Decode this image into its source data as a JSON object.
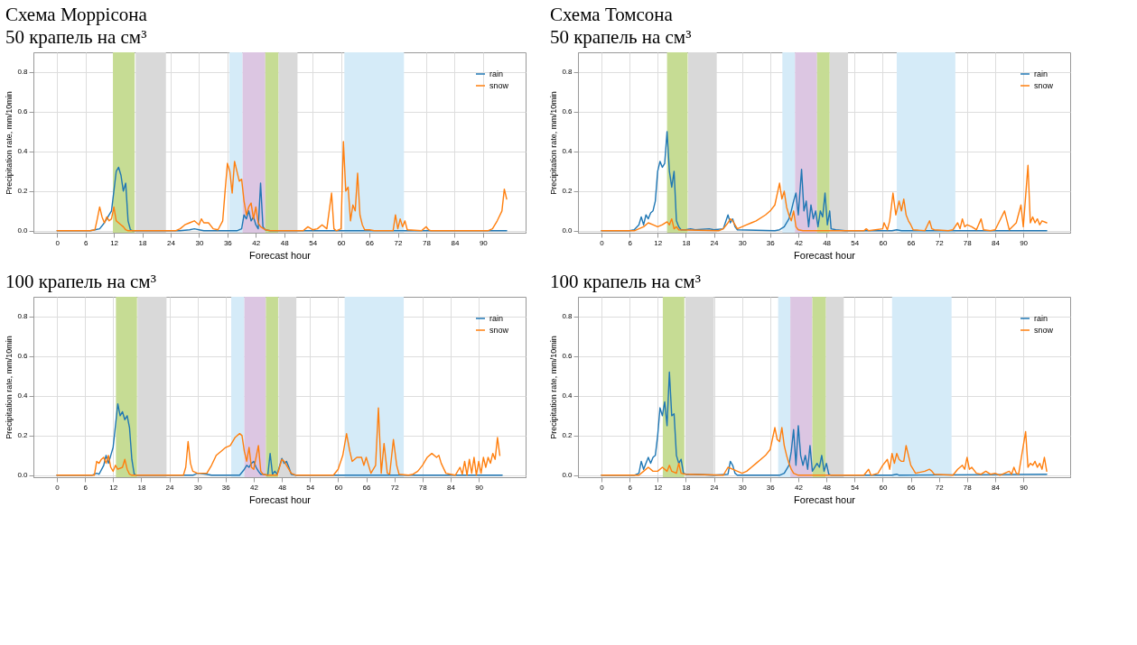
{
  "chart_data": [
    {
      "type": "line",
      "title": "Схема Моррісона",
      "subtitle": "50 крапель на см³",
      "xlabel": "Forecast hour",
      "ylabel": "Precipitation rate, mm/10min",
      "xlim": [
        -5,
        99
      ],
      "ylim": [
        -0.01,
        0.9
      ],
      "xticks": [
        0,
        6,
        12,
        18,
        24,
        30,
        36,
        42,
        48,
        54,
        60,
        66,
        72,
        78,
        84,
        90
      ],
      "yticks": [
        {
          "value": 0,
          "label": "0.0"
        },
        {
          "value": 0.2,
          "label": "0.2"
        },
        {
          "value": 0.4,
          "label": "0.4"
        },
        {
          "value": 0.6,
          "label": "0.6"
        },
        {
          "value": 0.8,
          "label": "0.8"
        }
      ],
      "grid": true,
      "legend": "top right",
      "bands": [
        {
          "axis": "x",
          "from": 11.8,
          "to": 16.4,
          "color": "#c6dc94"
        },
        {
          "axis": "x",
          "from": 16.6,
          "to": 23,
          "color": "#d9d9d9"
        },
        {
          "axis": "x",
          "from": 36.4,
          "to": 39.2,
          "color": "#d5ebf8"
        },
        {
          "axis": "x",
          "from": 39.2,
          "to": 44,
          "color": "#dcc6e2"
        },
        {
          "axis": "x",
          "from": 44,
          "to": 46.8,
          "color": "#c6dc94"
        },
        {
          "axis": "x",
          "from": 46.8,
          "to": 50.8,
          "color": "#d9d9d9"
        },
        {
          "axis": "x",
          "from": 60.7,
          "to": 73.3,
          "color": "#d5ebf8"
        }
      ],
      "series": [
        {
          "name": "rain",
          "color": "#1f77b4",
          "x": [
            0,
            7,
            8,
            9,
            10,
            10.5,
            11,
            11.5,
            12,
            12.5,
            13,
            13.5,
            14,
            14.5,
            15,
            15.5,
            16,
            26,
            28,
            29,
            30,
            31,
            38,
            39,
            39.5,
            40,
            40.5,
            41,
            41.5,
            42,
            42.5,
            43,
            43.5,
            44,
            45,
            95
          ],
          "values": [
            0,
            0,
            0.005,
            0.01,
            0.04,
            0.06,
            0.08,
            0.1,
            0.2,
            0.3,
            0.32,
            0.28,
            0.2,
            0.24,
            0.05,
            0.005,
            0,
            0,
            0.005,
            0.01,
            0.005,
            0,
            0,
            0.01,
            0.08,
            0.06,
            0.1,
            0.05,
            0.07,
            0.03,
            0.01,
            0.24,
            0.02,
            0.005,
            0,
            0
          ]
        },
        {
          "name": "snow",
          "color": "#ff7f0e",
          "x": [
            0,
            7,
            8,
            8.5,
            9,
            9.5,
            10,
            10.5,
            11,
            11.5,
            12,
            12.5,
            13,
            13.5,
            14,
            14.5,
            15,
            25,
            26,
            27,
            28,
            29,
            30,
            30.5,
            31,
            32,
            33,
            34,
            35,
            35.5,
            36,
            36.5,
            37,
            37.5,
            38,
            38.5,
            39,
            39.5,
            40,
            40.5,
            41,
            41.5,
            42,
            42.5,
            43,
            44,
            45,
            52,
            53,
            54,
            55,
            56,
            57,
            58,
            58.5,
            59,
            60,
            60.5,
            61,
            61.5,
            62,
            62.5,
            63,
            63.5,
            64,
            64.5,
            65,
            66,
            67,
            71,
            71.5,
            72,
            72.5,
            73,
            73.5,
            74,
            77,
            78,
            78.5,
            79,
            91,
            92,
            93,
            94,
            94.5,
            95
          ],
          "values": [
            0,
            0,
            0.005,
            0.06,
            0.12,
            0.07,
            0.04,
            0.07,
            0.05,
            0.06,
            0.12,
            0.05,
            0.04,
            0.03,
            0.02,
            0.005,
            0,
            0,
            0.01,
            0.03,
            0.04,
            0.05,
            0.03,
            0.06,
            0.04,
            0.04,
            0.01,
            0.005,
            0.05,
            0.2,
            0.34,
            0.3,
            0.19,
            0.35,
            0.3,
            0.25,
            0.26,
            0.15,
            0.08,
            0.12,
            0.14,
            0.06,
            0.12,
            0.04,
            0.02,
            0.005,
            0,
            0,
            0.02,
            0.005,
            0.01,
            0.03,
            0.01,
            0.19,
            0.01,
            0,
            0.01,
            0.45,
            0.2,
            0.22,
            0.05,
            0.13,
            0.1,
            0.29,
            0.08,
            0.03,
            0.005,
            0.005,
            0,
            0,
            0.08,
            0.01,
            0.06,
            0.02,
            0.05,
            0.005,
            0,
            0.02,
            0.005,
            0,
            0,
            0.01,
            0.05,
            0.1,
            0.21,
            0.16
          ]
        }
      ]
    },
    {
      "type": "line",
      "title": "Схема Томсона",
      "subtitle": "50 крапель на см³",
      "xlabel": "Forecast hour",
      "ylabel": "Precipitation rate, mm/10min",
      "xlim": [
        -5,
        100
      ],
      "ylim": [
        -0.01,
        0.9
      ],
      "xticks": [
        0,
        6,
        12,
        18,
        24,
        30,
        36,
        42,
        48,
        54,
        60,
        66,
        72,
        78,
        84,
        90
      ],
      "yticks": [
        {
          "value": 0,
          "label": "0.0"
        },
        {
          "value": 0.2,
          "label": "0.2"
        },
        {
          "value": 0.4,
          "label": "0.4"
        },
        {
          "value": 0.6,
          "label": "0.6"
        },
        {
          "value": 0.8,
          "label": "0.8"
        }
      ],
      "grid": true,
      "legend": "top right",
      "bands": [
        {
          "axis": "x",
          "from": 14,
          "to": 18.4,
          "color": "#c6dc94"
        },
        {
          "axis": "x",
          "from": 18.5,
          "to": 24.6,
          "color": "#d9d9d9"
        },
        {
          "axis": "x",
          "from": 38.6,
          "to": 41.3,
          "color": "#d5ebf8"
        },
        {
          "axis": "x",
          "from": 41.3,
          "to": 46,
          "color": "#dcc6e2"
        },
        {
          "axis": "x",
          "from": 46,
          "to": 48.7,
          "color": "#c6dc94"
        },
        {
          "axis": "x",
          "from": 48.7,
          "to": 52.6,
          "color": "#d9d9d9"
        },
        {
          "axis": "x",
          "from": 63,
          "to": 75.5,
          "color": "#d5ebf8"
        }
      ],
      "series": [
        {
          "name": "rain",
          "color": "#1f77b4",
          "x": [
            0,
            6,
            7,
            8,
            8.5,
            9,
            9.5,
            10,
            10.5,
            11,
            11.5,
            12,
            12.5,
            13,
            13.5,
            14,
            14.5,
            15,
            15.5,
            16,
            16.5,
            17,
            18,
            19,
            20,
            23,
            24,
            26,
            27,
            27.5,
            28,
            28.5,
            29,
            37,
            38,
            39,
            40,
            40.5,
            41,
            41.5,
            42,
            42.7,
            43.2,
            43.7,
            44.2,
            44.7,
            45.2,
            45.7,
            46.2,
            46.7,
            47.2,
            47.7,
            48.2,
            48.7,
            49,
            50,
            52,
            62,
            63,
            64,
            95
          ],
          "values": [
            0,
            0,
            0.005,
            0.03,
            0.07,
            0.03,
            0.08,
            0.06,
            0.09,
            0.1,
            0.15,
            0.3,
            0.35,
            0.32,
            0.34,
            0.5,
            0.3,
            0.22,
            0.3,
            0.05,
            0.02,
            0.005,
            0.005,
            0.01,
            0.005,
            0.01,
            0.005,
            0.01,
            0.08,
            0.04,
            0.06,
            0.02,
            0.005,
            0,
            0.005,
            0.02,
            0.06,
            0.1,
            0.15,
            0.19,
            0.08,
            0.31,
            0.1,
            0.15,
            0.02,
            0.13,
            0.06,
            0.1,
            0.02,
            0.1,
            0.07,
            0.19,
            0.03,
            0.1,
            0.01,
            0.005,
            0,
            0,
            0.005,
            0,
            0
          ]
        },
        {
          "name": "snow",
          "color": "#ff7f0e",
          "x": [
            0,
            7,
            8,
            9,
            10,
            11,
            12,
            13,
            14,
            14.5,
            15,
            15.5,
            16,
            16.5,
            25,
            26,
            27,
            27.5,
            28,
            29,
            30,
            31,
            32,
            33,
            35,
            36,
            37,
            38,
            38.5,
            39,
            39.5,
            40,
            40.5,
            41,
            41.5,
            42,
            43,
            56,
            56.5,
            57,
            60,
            60.3,
            61,
            61.5,
            62.2,
            62.8,
            63.5,
            64,
            64.5,
            65,
            65.5,
            66,
            66.5,
            69,
            70,
            70.5,
            71,
            74,
            75,
            76,
            76.5,
            77,
            77.5,
            78,
            79,
            80,
            81,
            81.5,
            83,
            84,
            86,
            87,
            88.5,
            89.5,
            90,
            91,
            91.5,
            92,
            92.5,
            93,
            93.5,
            94,
            95
          ],
          "values": [
            0,
            0,
            0.01,
            0.02,
            0.04,
            0.03,
            0.02,
            0.03,
            0.045,
            0.03,
            0.06,
            0.01,
            0.02,
            0.005,
            0,
            0.01,
            0.04,
            0.06,
            0.05,
            0.01,
            0.02,
            0.03,
            0.04,
            0.05,
            0.08,
            0.1,
            0.13,
            0.24,
            0.16,
            0.2,
            0.12,
            0.08,
            0.05,
            0.1,
            0.02,
            0.005,
            0,
            0,
            0.01,
            0,
            0.01,
            0.04,
            0.005,
            0.05,
            0.19,
            0.08,
            0.15,
            0.1,
            0.16,
            0.08,
            0.05,
            0.03,
            0.005,
            0,
            0.05,
            0.01,
            0.005,
            0,
            0.005,
            0.04,
            0.01,
            0.06,
            0.02,
            0.03,
            0.02,
            0.005,
            0.06,
            0.005,
            0,
            0.005,
            0.1,
            0.005,
            0.04,
            0.13,
            0.02,
            0.33,
            0.04,
            0.07,
            0.04,
            0.06,
            0.03,
            0.05,
            0.04
          ]
        }
      ]
    },
    {
      "type": "line",
      "title": "100 крапель на см³",
      "xlabel": "Forecast hour",
      "ylabel": "Precipitation rate, mm/10min",
      "xlim": [
        -5,
        100
      ],
      "ylim": [
        -0.01,
        0.9
      ],
      "xticks": [
        0,
        6,
        12,
        18,
        24,
        30,
        36,
        42,
        48,
        54,
        60,
        66,
        72,
        78,
        84,
        90
      ],
      "yticks": [
        {
          "value": 0,
          "label": "0.0"
        },
        {
          "value": 0.2,
          "label": "0.2"
        },
        {
          "value": 0.4,
          "label": "0.4"
        },
        {
          "value": 0.6,
          "label": "0.6"
        },
        {
          "value": 0.8,
          "label": "0.8"
        }
      ],
      "grid": true,
      "legend": "top right",
      "bands": [
        {
          "axis": "x",
          "from": 12.6,
          "to": 17.1,
          "color": "#c6dc94"
        },
        {
          "axis": "x",
          "from": 17.2,
          "to": 23.4,
          "color": "#d9d9d9"
        },
        {
          "axis": "x",
          "from": 37.2,
          "to": 40,
          "color": "#d5ebf8"
        },
        {
          "axis": "x",
          "from": 40,
          "to": 44.6,
          "color": "#dcc6e2"
        },
        {
          "axis": "x",
          "from": 44.6,
          "to": 47.2,
          "color": "#c6dc94"
        },
        {
          "axis": "x",
          "from": 47.3,
          "to": 51.1,
          "color": "#d9d9d9"
        },
        {
          "axis": "x",
          "from": 61.4,
          "to": 74,
          "color": "#d5ebf8"
        }
      ],
      "series": [
        {
          "name": "rain",
          "color": "#1f77b4",
          "x": [
            0,
            7.5,
            8,
            8.5,
            9,
            10,
            10.5,
            11,
            11.5,
            12,
            12.5,
            13,
            13.5,
            14,
            14.5,
            15,
            15.5,
            16,
            16.5,
            17,
            29,
            30,
            32,
            33,
            39,
            40,
            40.5,
            41,
            41.5,
            42,
            42.5,
            43,
            43.5,
            44,
            45,
            45.5,
            46,
            46.5,
            47,
            48,
            48.5,
            49,
            49.5,
            50,
            51,
            95
          ],
          "values": [
            0,
            0,
            0.005,
            0.01,
            0.005,
            0.05,
            0.1,
            0.06,
            0.1,
            0.14,
            0.25,
            0.36,
            0.3,
            0.32,
            0.28,
            0.3,
            0.24,
            0.08,
            0.005,
            0,
            0,
            0.01,
            0.005,
            0,
            0,
            0.03,
            0.05,
            0.04,
            0.06,
            0.07,
            0.04,
            0.02,
            0.005,
            0.005,
            0,
            0.11,
            0.005,
            0.02,
            0.005,
            0.085,
            0.06,
            0.07,
            0.04,
            0.005,
            0,
            0
          ]
        },
        {
          "name": "snow",
          "color": "#ff7f0e",
          "x": [
            0,
            8,
            8.5,
            9,
            9.5,
            10,
            10.5,
            11,
            11.5,
            12,
            12.5,
            13,
            14,
            14.5,
            15,
            15.5,
            16,
            27,
            27.5,
            28,
            28.5,
            29,
            30,
            31,
            32,
            33,
            34,
            35,
            36,
            37,
            38,
            39,
            39.5,
            40,
            40.5,
            41,
            41.5,
            42,
            43,
            43.5,
            44,
            45,
            47,
            48,
            48.5,
            49,
            50,
            51,
            59,
            60,
            61,
            61.8,
            62.5,
            63,
            64,
            65,
            65.5,
            66,
            67,
            68,
            68.6,
            69.2,
            69.8,
            70.5,
            71,
            71.8,
            72.5,
            73,
            75,
            76,
            77,
            78,
            79,
            80,
            81,
            81.5,
            82,
            83,
            84,
            85,
            86,
            86.5,
            87,
            87.5,
            88,
            88.5,
            89,
            89.5,
            90,
            90.5,
            91,
            91.5,
            92,
            92.5,
            93,
            93.5,
            94,
            94.5
          ],
          "values": [
            0,
            0,
            0.07,
            0.06,
            0.08,
            0.09,
            0.06,
            0.1,
            0.04,
            0.02,
            0.05,
            0.03,
            0.04,
            0.08,
            0.03,
            0.005,
            0,
            0,
            0.04,
            0.17,
            0.06,
            0.02,
            0.01,
            0.01,
            0.01,
            0.05,
            0.1,
            0.12,
            0.14,
            0.15,
            0.19,
            0.21,
            0.2,
            0.12,
            0.07,
            0.14,
            0.04,
            0.03,
            0.15,
            0.02,
            0.005,
            0,
            0,
            0.08,
            0.07,
            0.05,
            0.01,
            0,
            0,
            0.03,
            0.1,
            0.21,
            0.12,
            0.07,
            0.09,
            0.09,
            0.05,
            0.09,
            0.01,
            0.05,
            0.34,
            0.01,
            0.16,
            0.01,
            0.005,
            0.18,
            0.05,
            0.005,
            0,
            0.005,
            0.02,
            0.05,
            0.09,
            0.11,
            0.09,
            0.1,
            0.06,
            0.01,
            0.005,
            0,
            0.04,
            0.005,
            0.07,
            0,
            0.08,
            0.01,
            0.09,
            0,
            0.07,
            0.01,
            0.09,
            0.04,
            0.09,
            0.06,
            0.11,
            0.08,
            0.19,
            0.1
          ]
        }
      ]
    },
    {
      "type": "line",
      "title": "100 крапель на см³",
      "xlabel": "Forecast hour",
      "ylabel": "Precipitation rate, mm/10min",
      "xlim": [
        -5,
        100
      ],
      "ylim": [
        -0.01,
        0.9
      ],
      "xticks": [
        0,
        6,
        12,
        18,
        24,
        30,
        36,
        42,
        48,
        54,
        60,
        66,
        72,
        78,
        84,
        90
      ],
      "yticks": [
        {
          "value": 0,
          "label": "0.0"
        },
        {
          "value": 0.2,
          "label": "0.2"
        },
        {
          "value": 0.4,
          "label": "0.4"
        },
        {
          "value": 0.6,
          "label": "0.6"
        },
        {
          "value": 0.8,
          "label": "0.8"
        }
      ],
      "grid": true,
      "legend": "top right",
      "bands": [
        {
          "axis": "x",
          "from": 13.1,
          "to": 17.7,
          "color": "#c6dc94"
        },
        {
          "axis": "x",
          "from": 17.9,
          "to": 24,
          "color": "#d9d9d9"
        },
        {
          "axis": "x",
          "from": 37.7,
          "to": 40.3,
          "color": "#d5ebf8"
        },
        {
          "axis": "x",
          "from": 40.3,
          "to": 45,
          "color": "#dcc6e2"
        },
        {
          "axis": "x",
          "from": 45,
          "to": 47.9,
          "color": "#c6dc94"
        },
        {
          "axis": "x",
          "from": 47.9,
          "to": 51.7,
          "color": "#d9d9d9"
        },
        {
          "axis": "x",
          "from": 62,
          "to": 74.7,
          "color": "#d5ebf8"
        }
      ],
      "series": [
        {
          "name": "rain",
          "color": "#1f77b4",
          "x": [
            0,
            7,
            8,
            8.5,
            9,
            9.5,
            10,
            10.5,
            11,
            11.5,
            12,
            12.5,
            13,
            13.5,
            14,
            14.5,
            15,
            15.5,
            16,
            16.5,
            17,
            17.5,
            18,
            20,
            24,
            27,
            27.5,
            28,
            28.5,
            29,
            38,
            39,
            40,
            40.5,
            41,
            41.5,
            42,
            42.5,
            43,
            43.5,
            44,
            44.5,
            45,
            46,
            46.5,
            47,
            47.5,
            48,
            48.5,
            49,
            62,
            63,
            63.5,
            95
          ],
          "values": [
            0,
            0,
            0.01,
            0.07,
            0.03,
            0.06,
            0.09,
            0.06,
            0.09,
            0.1,
            0.2,
            0.34,
            0.3,
            0.37,
            0.25,
            0.52,
            0.3,
            0.31,
            0.1,
            0.06,
            0.08,
            0.01,
            0.005,
            0.005,
            0,
            0.005,
            0.07,
            0.05,
            0.01,
            0,
            0,
            0.01,
            0.05,
            0.12,
            0.23,
            0.05,
            0.25,
            0.1,
            0.05,
            0.1,
            0.03,
            0.15,
            0.02,
            0.06,
            0.04,
            0.1,
            0.02,
            0.06,
            0.005,
            0,
            0,
            0.005,
            0,
            0.005
          ]
        },
        {
          "name": "snow",
          "color": "#ff7f0e",
          "x": [
            0,
            8,
            9,
            10,
            11,
            12,
            13,
            14,
            14.5,
            15,
            16,
            16.5,
            17,
            18,
            26,
            27,
            28,
            29,
            30,
            31,
            32,
            33,
            34,
            35,
            36,
            37,
            37.5,
            38,
            38.5,
            39,
            39.5,
            40,
            40.5,
            41,
            42,
            56,
            57,
            57.5,
            59,
            60,
            61,
            61.5,
            62,
            62.5,
            63,
            63.5,
            64,
            64.5,
            65,
            65.5,
            66,
            66.5,
            67,
            69,
            70,
            70.5,
            71,
            75,
            76,
            77,
            77.5,
            78,
            78.5,
            79,
            80,
            81,
            82,
            83,
            84,
            85,
            87,
            87.5,
            88,
            88.5,
            89,
            90.5,
            91,
            91.5,
            92,
            92.5,
            93,
            93.5,
            94,
            94.5,
            95
          ],
          "values": [
            0,
            0,
            0.02,
            0.04,
            0.02,
            0.02,
            0.04,
            0.02,
            0.05,
            0.02,
            0.01,
            0.06,
            0.01,
            0.005,
            0,
            0.04,
            0.03,
            0.02,
            0.01,
            0.02,
            0.04,
            0.06,
            0.08,
            0.1,
            0.13,
            0.24,
            0.18,
            0.17,
            0.24,
            0.15,
            0.1,
            0.06,
            0.03,
            0.01,
            0,
            0,
            0.03,
            0,
            0.01,
            0.05,
            0.08,
            0.03,
            0.11,
            0.06,
            0.11,
            0.08,
            0.07,
            0.07,
            0.15,
            0.1,
            0.05,
            0.03,
            0.01,
            0.02,
            0.03,
            0.02,
            0.005,
            0,
            0.03,
            0.05,
            0.03,
            0.09,
            0.03,
            0.04,
            0.01,
            0.005,
            0.02,
            0.005,
            0.01,
            0,
            0.02,
            0.005,
            0.04,
            0.01,
            0.005,
            0.22,
            0.04,
            0.06,
            0.05,
            0.07,
            0.04,
            0.06,
            0.03,
            0.09,
            0.02
          ]
        }
      ]
    }
  ]
}
